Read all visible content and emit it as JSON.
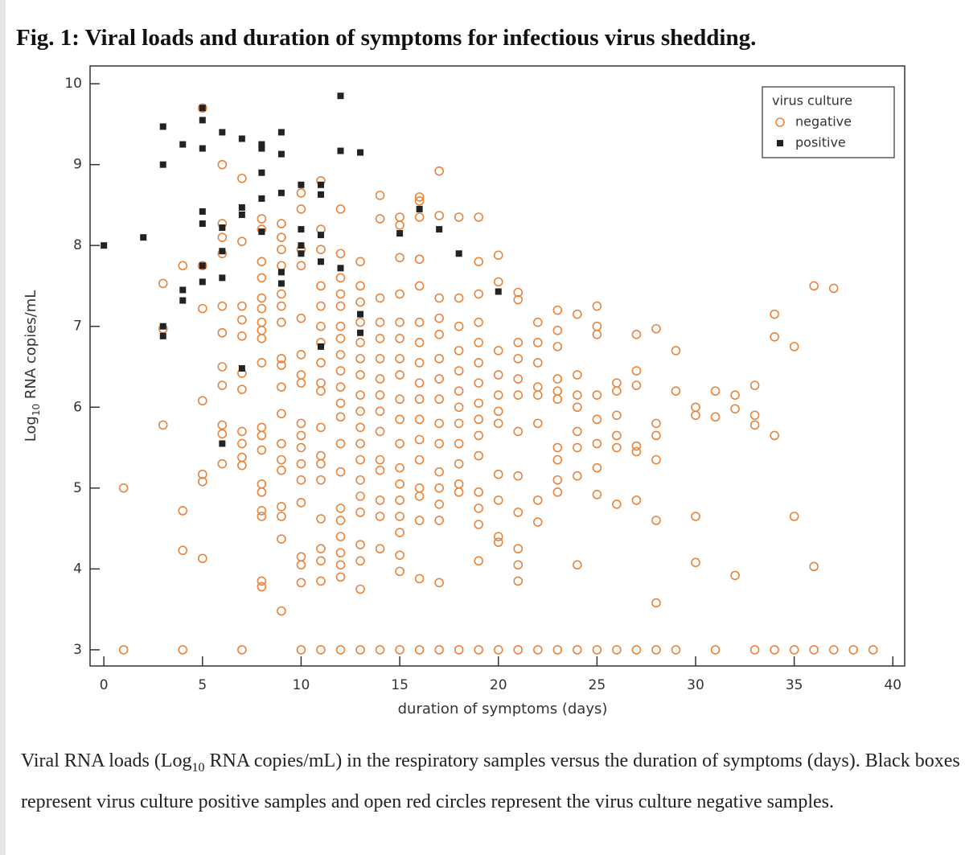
{
  "chart_data": {
    "type": "scatter",
    "title": "Fig. 1: Viral loads and duration of symptoms for infectious virus shedding.",
    "x_label": "duration of symptoms (days)",
    "y_label": {
      "prefix": "Log",
      "sub": "10",
      "suffix": " RNA copies/mL"
    },
    "xlim": [
      -0.7,
      40.6
    ],
    "ylim": [
      2.8,
      10.22
    ],
    "xticks": [
      0,
      5,
      10,
      15,
      20,
      25,
      30,
      35,
      40
    ],
    "yticks": [
      3,
      4,
      5,
      6,
      7,
      8,
      9,
      10
    ],
    "grid": false,
    "legend": {
      "title": "virus culture",
      "position": "upper right"
    },
    "series": [
      {
        "name": "negative",
        "color": "#e8833a",
        "marker": "circle",
        "x": [
          1,
          1,
          3,
          3,
          3,
          4,
          4,
          4,
          4,
          5,
          5,
          5,
          5,
          5,
          5,
          5,
          6,
          6,
          6,
          6,
          6,
          6,
          6,
          6,
          6,
          6,
          6,
          7,
          7,
          7,
          7,
          7,
          7,
          7,
          7,
          7,
          7,
          7,
          7,
          8,
          8,
          8,
          8,
          8,
          8,
          8,
          8,
          8,
          8,
          8,
          8,
          8,
          8,
          8,
          8,
          8,
          8,
          8,
          9,
          9,
          9,
          9,
          9,
          9,
          9,
          9,
          9,
          9,
          9,
          9,
          9,
          9,
          9,
          9,
          9,
          9,
          10,
          10,
          10,
          10,
          10,
          10,
          10,
          10,
          10,
          10,
          10,
          10,
          10,
          10,
          10,
          10,
          10,
          10,
          11,
          11,
          11,
          11,
          11,
          11,
          11,
          11,
          11,
          11,
          11,
          11,
          11,
          11,
          11,
          11,
          11,
          11,
          11,
          12,
          12,
          12,
          12,
          12,
          12,
          12,
          12,
          12,
          12,
          12,
          12,
          12,
          12,
          12,
          12,
          12,
          12,
          12,
          12,
          12,
          13,
          13,
          13,
          13,
          13,
          13,
          13,
          13,
          13,
          13,
          13,
          13,
          13,
          13,
          13,
          13,
          13,
          13,
          13,
          14,
          14,
          14,
          14,
          14,
          14,
          14,
          14,
          14,
          14,
          14,
          14,
          14,
          14,
          14,
          14,
          15,
          15,
          15,
          15,
          15,
          15,
          15,
          15,
          15,
          15,
          15,
          15,
          15,
          15,
          15,
          15,
          15,
          15,
          15,
          16,
          16,
          16,
          16,
          16,
          16,
          16,
          16,
          16,
          16,
          16,
          16,
          16,
          16,
          16,
          16,
          16,
          16,
          17,
          17,
          17,
          17,
          17,
          17,
          17,
          17,
          17,
          17,
          17,
          17,
          17,
          17,
          17,
          17,
          18,
          18,
          18,
          18,
          18,
          18,
          18,
          18,
          18,
          18,
          18,
          18,
          18,
          19,
          19,
          19,
          19,
          19,
          19,
          19,
          19,
          19,
          19,
          19,
          19,
          19,
          19,
          19,
          19,
          20,
          20,
          20,
          20,
          20,
          20,
          20,
          20,
          20,
          20,
          20,
          20,
          21,
          21,
          21,
          21,
          21,
          21,
          21,
          21,
          21,
          21,
          21,
          21,
          21,
          22,
          22,
          22,
          22,
          22,
          22,
          22,
          22,
          22,
          23,
          23,
          23,
          23,
          23,
          23,
          23,
          23,
          23,
          23,
          23,
          24,
          24,
          24,
          24,
          24,
          24,
          24,
          24,
          24,
          25,
          25,
          25,
          25,
          25,
          25,
          25,
          25,
          25,
          26,
          26,
          26,
          26,
          26,
          26,
          26,
          27,
          27,
          27,
          27,
          27,
          27,
          27,
          28,
          28,
          28,
          28,
          28,
          28,
          28,
          29,
          29,
          29,
          30,
          30,
          30,
          30,
          31,
          31,
          31,
          32,
          32,
          32,
          33,
          33,
          33,
          33,
          34,
          34,
          34,
          34,
          35,
          35,
          35,
          36,
          36,
          36,
          37,
          37,
          38,
          39
        ],
        "values": [
          5.0,
          3.0,
          7.53,
          6.97,
          5.78,
          7.75,
          4.72,
          4.23,
          3.0,
          9.7,
          7.75,
          7.22,
          6.08,
          5.17,
          5.08,
          4.13,
          9.0,
          8.27,
          8.1,
          7.9,
          7.25,
          6.92,
          6.5,
          6.27,
          5.78,
          5.67,
          5.3,
          8.83,
          8.05,
          7.25,
          7.08,
          6.88,
          6.42,
          6.22,
          5.7,
          5.55,
          5.38,
          5.28,
          3.0,
          8.33,
          8.2,
          7.8,
          7.6,
          7.35,
          7.22,
          7.05,
          6.95,
          6.85,
          6.55,
          5.75,
          5.65,
          5.47,
          5.05,
          4.95,
          4.72,
          4.65,
          3.85,
          3.78,
          8.27,
          8.1,
          7.95,
          7.75,
          7.4,
          7.25,
          7.05,
          6.6,
          6.52,
          6.25,
          5.92,
          5.55,
          5.35,
          5.22,
          4.77,
          4.65,
          4.37,
          3.48,
          8.65,
          8.45,
          7.95,
          7.75,
          7.1,
          6.65,
          6.4,
          6.3,
          5.8,
          5.65,
          5.5,
          5.3,
          5.1,
          4.82,
          4.15,
          4.05,
          3.83,
          3.0,
          8.8,
          8.2,
          7.95,
          7.5,
          7.25,
          7.0,
          6.8,
          6.55,
          6.3,
          6.2,
          5.75,
          5.4,
          5.3,
          5.1,
          4.62,
          4.25,
          4.1,
          3.85,
          3.0,
          8.45,
          7.9,
          7.6,
          7.4,
          7.25,
          7.0,
          6.85,
          6.65,
          6.45,
          6.25,
          6.05,
          5.88,
          5.55,
          5.2,
          4.75,
          4.6,
          4.4,
          4.2,
          4.05,
          3.9,
          3.0,
          7.8,
          7.5,
          7.3,
          7.05,
          6.8,
          6.6,
          6.4,
          6.15,
          5.95,
          5.75,
          5.55,
          5.35,
          5.1,
          4.9,
          4.7,
          4.3,
          4.1,
          3.75,
          3.0,
          8.62,
          8.33,
          7.35,
          7.05,
          6.85,
          6.6,
          6.35,
          6.15,
          5.95,
          5.7,
          5.35,
          5.22,
          4.85,
          4.65,
          4.25,
          3.0,
          8.35,
          8.25,
          7.85,
          7.4,
          7.05,
          6.85,
          6.6,
          6.4,
          6.1,
          5.85,
          5.55,
          5.25,
          5.05,
          4.85,
          4.65,
          4.45,
          4.17,
          3.97,
          3.0,
          8.6,
          8.55,
          8.35,
          7.83,
          7.5,
          7.05,
          6.8,
          6.55,
          6.3,
          6.1,
          5.85,
          5.6,
          5.35,
          5.0,
          4.9,
          4.6,
          3.88,
          3.0,
          8.92,
          8.37,
          7.35,
          7.1,
          6.9,
          6.6,
          6.35,
          6.1,
          5.8,
          5.55,
          5.2,
          5.0,
          4.8,
          4.6,
          3.83,
          3.0,
          8.35,
          7.35,
          7.0,
          6.7,
          6.45,
          6.2,
          6.0,
          5.8,
          5.55,
          5.3,
          5.05,
          4.95,
          3.0,
          8.35,
          7.8,
          7.4,
          7.05,
          6.8,
          6.55,
          6.3,
          6.05,
          5.85,
          5.65,
          5.4,
          4.95,
          4.75,
          4.55,
          4.1,
          3.0,
          7.88,
          7.55,
          6.7,
          6.4,
          6.15,
          5.95,
          5.8,
          5.17,
          4.85,
          4.4,
          4.33,
          3.0,
          7.42,
          7.33,
          6.8,
          6.6,
          6.35,
          6.15,
          5.7,
          5.15,
          4.7,
          4.25,
          4.05,
          3.85,
          3.0,
          7.05,
          6.8,
          6.55,
          6.25,
          6.15,
          5.8,
          4.85,
          4.58,
          3.0,
          7.2,
          6.95,
          6.75,
          6.35,
          6.2,
          6.1,
          5.5,
          5.35,
          5.1,
          4.95,
          3.0,
          7.15,
          6.4,
          6.15,
          6.0,
          5.7,
          5.5,
          5.15,
          4.05,
          3.0,
          7.25,
          7.0,
          6.9,
          6.15,
          5.85,
          5.55,
          5.25,
          4.92,
          3.0,
          6.3,
          6.2,
          5.9,
          5.65,
          5.5,
          4.8,
          3.0,
          6.9,
          6.45,
          6.27,
          5.52,
          5.45,
          4.85,
          3.0,
          6.97,
          5.8,
          5.65,
          5.35,
          4.6,
          3.58,
          3.0,
          6.7,
          6.2,
          3.0,
          6.0,
          5.9,
          4.65,
          4.08,
          6.2,
          5.88,
          3.0,
          6.15,
          5.98,
          3.92,
          6.27,
          5.9,
          5.78,
          3.0,
          7.15,
          6.87,
          5.65,
          3.0,
          6.75,
          4.65,
          3.0,
          7.5,
          4.03,
          3.0,
          7.47,
          3.0,
          3.0,
          3.0
        ]
      },
      {
        "name": "positive",
        "color": "#222222",
        "marker": "square",
        "x": [
          0,
          2,
          3,
          3,
          3,
          3,
          4,
          4,
          4,
          5,
          5,
          5,
          5,
          5,
          5,
          5,
          6,
          6,
          6,
          6,
          6,
          7,
          7,
          7,
          7,
          8,
          8,
          8,
          8,
          8,
          9,
          9,
          9,
          9,
          9,
          10,
          10,
          10,
          10,
          11,
          11,
          11,
          11,
          11,
          12,
          12,
          12,
          13,
          13,
          13,
          15,
          16,
          17,
          18,
          20
        ],
        "values": [
          8.0,
          8.1,
          9.47,
          9.0,
          7.0,
          6.88,
          9.25,
          7.45,
          7.32,
          9.7,
          9.55,
          9.2,
          8.42,
          8.27,
          7.75,
          7.55,
          9.4,
          8.22,
          7.93,
          7.6,
          5.55,
          9.32,
          8.47,
          8.38,
          6.48,
          9.25,
          9.2,
          8.9,
          8.58,
          8.17,
          9.4,
          9.13,
          8.65,
          7.67,
          7.53,
          8.75,
          8.2,
          8.0,
          7.9,
          8.75,
          8.63,
          8.13,
          7.8,
          6.75,
          9.85,
          9.17,
          7.72,
          9.15,
          7.15,
          6.92,
          8.15,
          8.45,
          8.2,
          7.9,
          7.43
        ]
      }
    ]
  },
  "caption": {
    "prefix": "Viral RNA loads (Log",
    "sub": "10",
    "suffix": " RNA copies/mL) in the respiratory samples versus the duration of symptoms (days). Black boxes represent virus culture positive samples and open red circles represent the virus culture negative samples."
  }
}
